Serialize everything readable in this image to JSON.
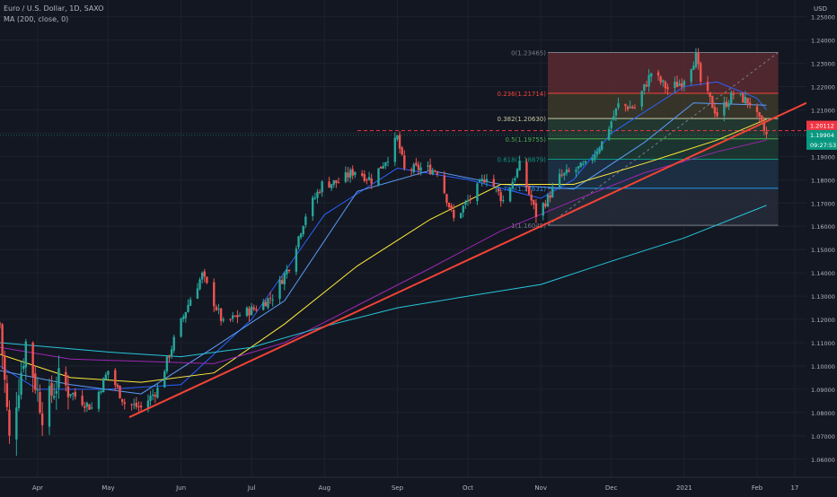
{
  "header": {
    "symbol": "Euro / U.S. Dollar, 1D, SAXO",
    "indicator": "MA (200, close, 0)"
  },
  "chart_data": {
    "type": "candlestick",
    "currency": "USD",
    "ylim": [
      1.0522,
      1.2572
    ],
    "y_ticks": [
      "1.25000",
      "1.24000",
      "1.23000",
      "1.22000",
      "1.21000",
      "1.20000",
      "1.19000",
      "1.18000",
      "1.17000",
      "1.16000",
      "1.15000",
      "1.14000",
      "1.13000",
      "1.12000",
      "1.11000",
      "1.10000",
      "1.09000",
      "1.08000",
      "1.07000",
      "1.06000"
    ],
    "x_range": [
      "2020-03-16",
      "2021-02-22"
    ],
    "x_ticks": [
      {
        "date": "2020-04-01",
        "label": "Apr"
      },
      {
        "date": "2020-05-01",
        "label": "May"
      },
      {
        "date": "2020-06-01",
        "label": "Jun"
      },
      {
        "date": "2020-07-01",
        "label": "Jul"
      },
      {
        "date": "2020-08-01",
        "label": "Aug"
      },
      {
        "date": "2020-09-01",
        "label": "Sep"
      },
      {
        "date": "2020-10-01",
        "label": "Oct"
      },
      {
        "date": "2020-11-01",
        "label": "Nov"
      },
      {
        "date": "2020-12-01",
        "label": "Dec"
      },
      {
        "date": "2021-01-01",
        "label": "2021"
      },
      {
        "date": "2021-02-01",
        "label": "Feb"
      },
      {
        "date": "2021-02-17",
        "label": "17"
      }
    ],
    "price_path": [
      [
        "2020-03-16",
        1.118
      ],
      [
        "2020-03-20",
        1.068
      ],
      [
        "2020-03-27",
        1.11
      ],
      [
        "2020-04-03",
        1.08
      ],
      [
        "2020-04-10",
        1.094
      ],
      [
        "2020-04-17",
        1.087
      ],
      [
        "2020-04-24",
        1.082
      ],
      [
        "2020-05-01",
        1.098
      ],
      [
        "2020-05-08",
        1.084
      ],
      [
        "2020-05-15",
        1.082
      ],
      [
        "2020-05-22",
        1.09
      ],
      [
        "2020-05-29",
        1.111
      ],
      [
        "2020-06-05",
        1.129
      ],
      [
        "2020-06-10",
        1.139
      ],
      [
        "2020-06-19",
        1.118
      ],
      [
        "2020-06-26",
        1.122
      ],
      [
        "2020-07-03",
        1.125
      ],
      [
        "2020-07-10",
        1.13
      ],
      [
        "2020-07-17",
        1.143
      ],
      [
        "2020-07-24",
        1.165
      ],
      [
        "2020-07-31",
        1.178
      ],
      [
        "2020-08-07",
        1.179
      ],
      [
        "2020-08-14",
        1.184
      ],
      [
        "2020-08-21",
        1.18
      ],
      [
        "2020-08-28",
        1.19
      ],
      [
        "2020-09-01",
        1.198
      ],
      [
        "2020-09-04",
        1.184
      ],
      [
        "2020-09-11",
        1.185
      ],
      [
        "2020-09-18",
        1.184
      ],
      [
        "2020-09-25",
        1.163
      ],
      [
        "2020-10-02",
        1.172
      ],
      [
        "2020-10-09",
        1.182
      ],
      [
        "2020-10-16",
        1.171
      ],
      [
        "2020-10-23",
        1.186
      ],
      [
        "2020-10-30",
        1.165
      ],
      [
        "2020-11-04",
        1.172
      ],
      [
        "2020-11-09",
        1.181
      ],
      [
        "2020-11-13",
        1.183
      ],
      [
        "2020-11-20",
        1.186
      ],
      [
        "2020-11-27",
        1.196
      ],
      [
        "2020-12-04",
        1.212
      ],
      [
        "2020-12-11",
        1.211
      ],
      [
        "2020-12-18",
        1.226
      ],
      [
        "2020-12-25",
        1.219
      ],
      [
        "2020-12-31",
        1.222
      ],
      [
        "2021-01-06",
        1.233
      ],
      [
        "2021-01-08",
        1.222
      ],
      [
        "2021-01-15",
        1.208
      ],
      [
        "2021-01-22",
        1.217
      ],
      [
        "2021-01-29",
        1.213
      ],
      [
        "2021-02-03",
        1.203
      ],
      [
        "2021-02-05",
        1.199
      ]
    ],
    "moving_averages": [
      {
        "color": "#2962ff",
        "points": [
          [
            "2020-03-16",
            1.1
          ],
          [
            "2020-04-01",
            1.09
          ],
          [
            "2020-05-01",
            1.09
          ],
          [
            "2020-06-01",
            1.092
          ],
          [
            "2020-07-01",
            1.12
          ],
          [
            "2020-08-01",
            1.165
          ],
          [
            "2020-09-01",
            1.185
          ],
          [
            "2020-10-01",
            1.18
          ],
          [
            "2020-11-01",
            1.172
          ],
          [
            "2020-11-15",
            1.18
          ],
          [
            "2020-12-01",
            1.2
          ],
          [
            "2021-01-01",
            1.22
          ],
          [
            "2021-01-15",
            1.222
          ],
          [
            "2021-02-01",
            1.215
          ],
          [
            "2021-02-05",
            1.21
          ]
        ]
      },
      {
        "color": "#5b9cf6",
        "points": [
          [
            "2020-03-16",
            1.098
          ],
          [
            "2020-04-15",
            1.092
          ],
          [
            "2020-05-15",
            1.088
          ],
          [
            "2020-06-15",
            1.108
          ],
          [
            "2020-07-15",
            1.128
          ],
          [
            "2020-08-15",
            1.175
          ],
          [
            "2020-09-15",
            1.184
          ],
          [
            "2020-10-15",
            1.178
          ],
          [
            "2020-11-15",
            1.176
          ],
          [
            "2020-12-15",
            1.196
          ],
          [
            "2021-01-05",
            1.213
          ],
          [
            "2021-02-05",
            1.212
          ]
        ]
      },
      {
        "color": "#ffeb3b",
        "points": [
          [
            "2020-03-16",
            1.105
          ],
          [
            "2020-04-15",
            1.095
          ],
          [
            "2020-05-15",
            1.093
          ],
          [
            "2020-06-15",
            1.097
          ],
          [
            "2020-07-15",
            1.118
          ],
          [
            "2020-08-15",
            1.143
          ],
          [
            "2020-09-15",
            1.163
          ],
          [
            "2020-10-15",
            1.178
          ],
          [
            "2020-11-15",
            1.178
          ],
          [
            "2020-12-15",
            1.187
          ],
          [
            "2021-01-15",
            1.197
          ],
          [
            "2021-02-05",
            1.206
          ]
        ]
      },
      {
        "color": "#9c27b0",
        "points": [
          [
            "2020-03-16",
            1.108
          ],
          [
            "2020-04-15",
            1.103
          ],
          [
            "2020-05-15",
            1.102
          ],
          [
            "2020-06-15",
            1.101
          ],
          [
            "2020-07-15",
            1.11
          ],
          [
            "2020-08-15",
            1.126
          ],
          [
            "2020-09-15",
            1.142
          ],
          [
            "2020-10-15",
            1.158
          ],
          [
            "2020-11-15",
            1.171
          ],
          [
            "2020-12-15",
            1.183
          ],
          [
            "2021-01-15",
            1.192
          ],
          [
            "2021-02-05",
            1.197
          ]
        ]
      },
      {
        "color": "#26c6da",
        "points": [
          [
            "2020-03-16",
            1.11
          ],
          [
            "2020-05-01",
            1.106
          ],
          [
            "2020-06-01",
            1.104
          ],
          [
            "2020-07-01",
            1.108
          ],
          [
            "2020-08-01",
            1.117
          ],
          [
            "2020-09-01",
            1.125
          ],
          [
            "2020-10-01",
            1.13
          ],
          [
            "2020-11-01",
            1.135
          ],
          [
            "2020-12-01",
            1.145
          ],
          [
            "2021-01-01",
            1.155
          ],
          [
            "2021-02-05",
            1.169
          ]
        ]
      }
    ],
    "trendline": {
      "color": "#f44336",
      "from": [
        "2020-05-10",
        1.078
      ],
      "to": [
        "2021-02-22",
        1.213
      ]
    },
    "fib_levels": [
      {
        "label": "0(1.23465)",
        "value": 1.23465,
        "color": "#787b86",
        "fill": "#5a2a30"
      },
      {
        "label": "0.236(1.21714)",
        "value": 1.21714,
        "color": "#f44336",
        "fill": "#3d3a2a"
      },
      {
        "label": "0.382(1.20630)",
        "value": 1.2063,
        "color": "#c7c7a0",
        "fill": "#243d33"
      },
      {
        "label": "0.5(1.19755)",
        "value": 1.19755,
        "color": "#4caf50",
        "fill": "#1f3a33"
      },
      {
        "label": "0.618(1.18879)",
        "value": 1.18879,
        "color": "#089981",
        "fill": "#1f3346"
      },
      {
        "label": "0.786(1.17631)",
        "value": 1.17631,
        "color": "#2196f3",
        "fill": "#272b3a"
      },
      {
        "label": "1(1.16045)",
        "value": 1.16045,
        "color": "#787b86",
        "fill": null
      }
    ],
    "fib_range": {
      "start": "2020-11-04",
      "end": "2021-02-10"
    },
    "resistance_line": {
      "value": 1.2011,
      "start": "2020-08-15",
      "end": "2021-02-10"
    },
    "price_labels": [
      {
        "text": "1.20112",
        "value": 1.20112,
        "color": "#f23645"
      },
      {
        "text": "1.19904",
        "value": 1.19904,
        "color": "#089981"
      },
      {
        "text": "09:27:53",
        "value": 1.19904,
        "color": "#089981"
      }
    ]
  }
}
